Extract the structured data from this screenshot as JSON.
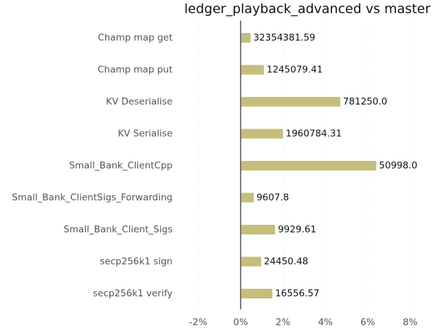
{
  "chart_data": {
    "type": "bar",
    "orientation": "horizontal",
    "title": "ledger_playback_advanced vs master",
    "xlabel": "",
    "ylabel": "",
    "categories": [
      "Champ map get",
      "Champ map put",
      "KV Deserialise",
      "KV Serialise",
      "Small_Bank_ClientCpp",
      "Small_Bank_ClientSigs_Forwarding",
      "Small_Bank_Client_Sigs",
      "secp256k1 sign",
      "secp256k1 verify"
    ],
    "values": [
      0.47,
      1.1,
      4.7,
      2.0,
      6.4,
      0.62,
      1.63,
      0.97,
      1.5
    ],
    "data_labels": [
      "32354381.59",
      "1245079.41",
      "781250.0",
      "1960784.31",
      "50998.0",
      "9607.8",
      "9929.61",
      "24450.48",
      "16556.57"
    ],
    "xlim": [
      -2.4,
      8.5
    ],
    "xticks": [
      -2,
      0,
      2,
      4,
      6,
      8
    ],
    "xtick_labels": [
      "-2%",
      "0%",
      "2%",
      "4%",
      "6%",
      "8%"
    ],
    "grid": "vertical, faint",
    "legend": "none",
    "colors": {
      "bar": "#c4bf7a",
      "zero_line": "#777777",
      "grid": "#eeeeee"
    }
  }
}
